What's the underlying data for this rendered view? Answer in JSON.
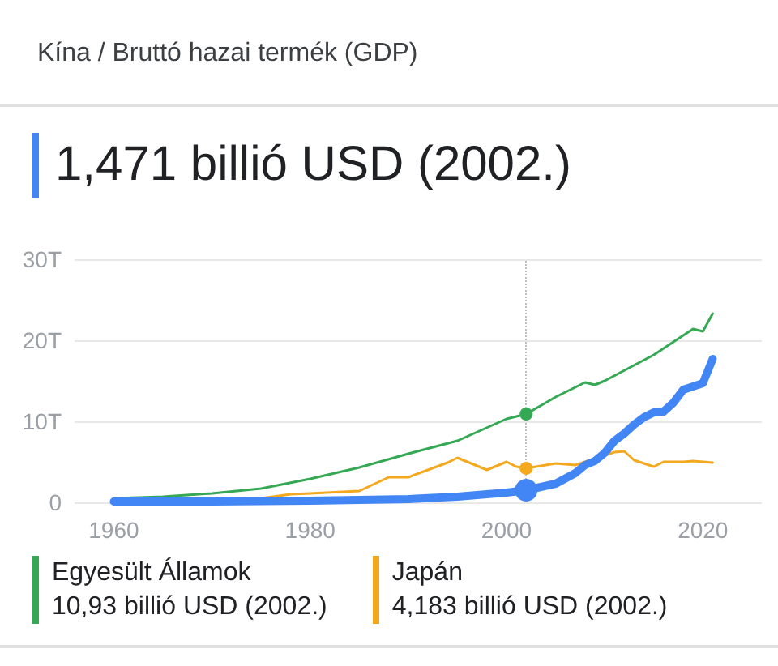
{
  "chart_data": {
    "type": "line",
    "title": "Kína / Bruttó hazai termék (GDP)",
    "series": [
      {
        "color": "#4285f4",
        "x": [
          1960,
          1970,
          1980,
          1985,
          1990,
          1995,
          2000,
          2002,
          2005,
          2007,
          2008,
          2009,
          2010,
          2011,
          2012,
          2013,
          2014,
          2015,
          2016,
          2017,
          2018,
          2019,
          2020,
          2021
        ],
        "values": [
          0.1,
          0.1,
          0.2,
          0.3,
          0.4,
          0.7,
          1.2,
          1.5,
          2.3,
          3.6,
          4.6,
          5.1,
          6.1,
          7.6,
          8.5,
          9.6,
          10.5,
          11.1,
          11.2,
          12.3,
          13.9,
          14.3,
          14.7,
          17.7
        ]
      },
      {
        "name": "Egyesült Államok",
        "color": "#34a853",
        "x": [
          1960,
          1965,
          1970,
          1975,
          1980,
          1985,
          1990,
          1995,
          2000,
          2002,
          2005,
          2008,
          2009,
          2010,
          2015,
          2019,
          2020,
          2021
        ],
        "values": [
          0.5,
          0.7,
          1.1,
          1.7,
          2.9,
          4.3,
          6.0,
          7.6,
          10.3,
          10.9,
          13.0,
          14.8,
          14.5,
          15.0,
          18.2,
          21.4,
          21.1,
          23.3
        ]
      },
      {
        "name": "Japán",
        "color": "#f4a81d",
        "x": [
          1975,
          1978,
          1980,
          1985,
          1988,
          1990,
          1994,
          1995,
          1998,
          2000,
          2001,
          2002,
          2005,
          2007,
          2010,
          2011,
          2012,
          2013,
          2015,
          2016,
          2018,
          2019,
          2020,
          2021
        ],
        "values": [
          0.5,
          1.0,
          1.1,
          1.4,
          3.1,
          3.1,
          4.9,
          5.5,
          4.0,
          5.0,
          4.4,
          4.2,
          4.8,
          4.6,
          5.8,
          6.2,
          6.3,
          5.2,
          4.4,
          5.0,
          5.0,
          5.1,
          5.0,
          4.9
        ]
      }
    ],
    "annotations": [
      "1,471 billió USD (2002.)",
      "10,93 billió USD (2002.)",
      "4,183 billió USD (2002.)"
    ],
    "ref_lines": [
      {
        "axis": "x",
        "value": 2002,
        "color": "#bdbdbd",
        "line_style": "dotted"
      }
    ],
    "xlim": [
      1956,
      2026
    ],
    "xticks": [
      1960,
      1980,
      2000,
      2020
    ],
    "ylim": [
      0,
      30
    ],
    "yticks": [
      0,
      {
        "value": 10,
        "label": "10T"
      },
      {
        "value": 20,
        "label": "20T"
      },
      {
        "value": 30,
        "label": "30T"
      }
    ],
    "grid": "y",
    "legend": "bottom",
    "marker": "none",
    "line_style": "solid"
  }
}
